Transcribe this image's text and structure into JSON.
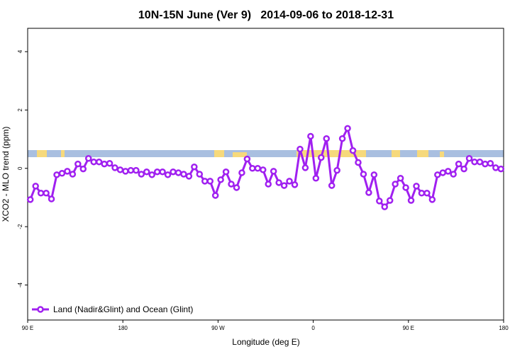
{
  "chart_data": {
    "type": "line",
    "title": "10N-15N June (Ver 9)   2014-09-06 to 2018-12-31",
    "x_label": "Longitude (deg E)",
    "y_label": "XCO2 - MLO trend (ppm)",
    "x": [
      92.5,
      97.5,
      102.5,
      107.5,
      112.5,
      117.5,
      122.5,
      127.5,
      132.5,
      137.5,
      142.5,
      147.5,
      152.5,
      157.5,
      162.5,
      167.5,
      172.5,
      177.5,
      182.5,
      187.5,
      192.5,
      197.5,
      202.5,
      207.5,
      212.5,
      217.5,
      222.5,
      227.5,
      232.5,
      237.5,
      242.5,
      247.5,
      252.5,
      257.5,
      262.5,
      267.5,
      272.5,
      277.5,
      282.5,
      287.5,
      292.5,
      297.5,
      302.5,
      307.5,
      312.5,
      317.5,
      322.5,
      327.5,
      332.5,
      337.5,
      342.5,
      347.5,
      352.5,
      357.5,
      362.5,
      367.5,
      372.5,
      377.5,
      382.5,
      387.5,
      392.5,
      397.5,
      402.5,
      407.5,
      412.5,
      417.5,
      422.5,
      427.5,
      432.5,
      437.5,
      442.5,
      447.5,
      452.5,
      457.5,
      462.5,
      467.5,
      472.5,
      477.5,
      482.5,
      487.5,
      492.5,
      497.5,
      502.5,
      507.5,
      512.5,
      517.5,
      522.5,
      527.5,
      532.5,
      537.5
    ],
    "series": [
      {
        "name": "Land (Nadir&Glint) and Ocean (Glint)",
        "color": "#a020f0",
        "values": [
          -1.07,
          -0.61,
          -0.85,
          -0.85,
          -1.05,
          -0.22,
          -0.17,
          -0.1,
          -0.2,
          0.15,
          -0.02,
          0.34,
          0.22,
          0.22,
          0.15,
          0.17,
          0.02,
          -0.05,
          -0.1,
          -0.07,
          -0.07,
          -0.2,
          -0.12,
          -0.22,
          -0.12,
          -0.12,
          -0.22,
          -0.12,
          -0.15,
          -0.2,
          -0.27,
          0.05,
          -0.2,
          -0.44,
          -0.44,
          -0.93,
          -0.39,
          -0.12,
          -0.54,
          -0.66,
          -0.15,
          0.32,
          0,
          0,
          -0.05,
          -0.54,
          -0.1,
          -0.49,
          -0.59,
          -0.44,
          -0.56,
          0.66,
          0.02,
          1.1,
          -0.34,
          0.37,
          1.02,
          -0.59,
          -0.07,
          1.02,
          1.37,
          0.61,
          0.2,
          -0.2,
          -0.83,
          -0.22,
          -1.12,
          -1.32,
          -1.1,
          -0.54,
          -0.34,
          -0.66,
          -1.1,
          -0.61,
          -0.85,
          -0.85,
          -1.07,
          -0.22,
          -0.15,
          -0.1,
          -0.2,
          0.15,
          -0.02,
          0.34,
          0.22,
          0.22,
          0.15,
          0.17,
          0.02,
          -0.02
        ]
      }
    ],
    "xlim": [
      90,
      540
    ],
    "xticks": [
      {
        "value": 90,
        "label": "90 E"
      },
      {
        "value": 180,
        "label": "180"
      },
      {
        "value": 270,
        "label": "90 W"
      },
      {
        "value": 360,
        "label": "0"
      },
      {
        "value": 450,
        "label": "90 E"
      },
      {
        "value": 540,
        "label": "180"
      }
    ],
    "ylim": [
      -5.2,
      4.8
    ],
    "yticks": [
      -4,
      -2,
      0,
      2,
      4
    ],
    "legend": "bottomleft"
  }
}
